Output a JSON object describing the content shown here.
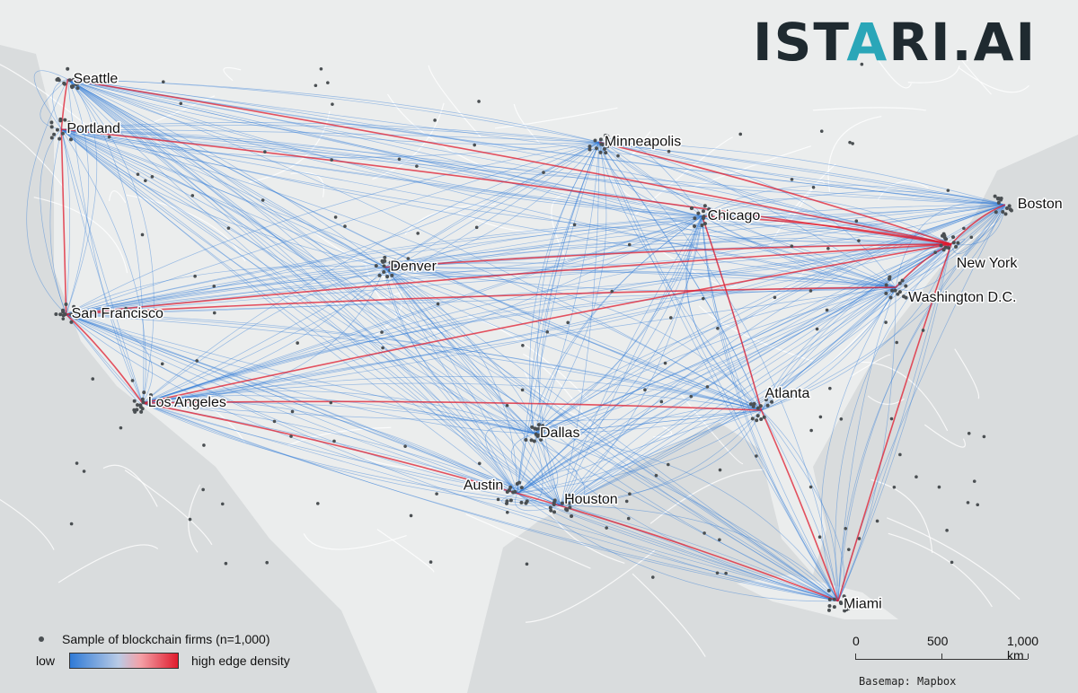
{
  "logo": {
    "left": "IST",
    "accent": "A",
    "right": "RI.AI"
  },
  "cities": [
    {
      "name": "Seattle",
      "lon": -122.33,
      "lat": 47.61
    },
    {
      "name": "Portland",
      "lon": -122.68,
      "lat": 45.52
    },
    {
      "name": "San Francisco",
      "lon": -122.42,
      "lat": 37.77
    },
    {
      "name": "Los Angeles",
      "lon": -118.24,
      "lat": 34.05
    },
    {
      "name": "Denver",
      "lon": -104.99,
      "lat": 39.74
    },
    {
      "name": "Minneapolis",
      "lon": -93.27,
      "lat": 44.98
    },
    {
      "name": "Chicago",
      "lon": -87.63,
      "lat": 41.88
    },
    {
      "name": "Dallas",
      "lon": -96.8,
      "lat": 32.78
    },
    {
      "name": "Austin",
      "lon": -97.74,
      "lat": 30.27
    },
    {
      "name": "Houston",
      "lon": -95.37,
      "lat": 29.76
    },
    {
      "name": "Atlanta",
      "lon": -84.39,
      "lat": 33.75
    },
    {
      "name": "Miami",
      "lon": -80.19,
      "lat": 25.76
    },
    {
      "name": "Washington D.C.",
      "lon": -77.04,
      "lat": 38.9
    },
    {
      "name": "New York",
      "lon": -74.01,
      "lat": 40.71
    },
    {
      "name": "Boston",
      "lon": -71.06,
      "lat": 42.36
    }
  ],
  "legend": {
    "firms_label": "Sample of blockchain firms (n=1,000)",
    "low_label": "low",
    "high_label": "high edge density"
  },
  "scale": {
    "labels": [
      "0",
      "500",
      "1,000 km"
    ]
  },
  "credit": "Basemap: Mapbox",
  "colors": {
    "water": "#d9dcdd",
    "land": "#ebeded",
    "edge_low": "#2f7ad6",
    "edge_high": "#e01b2d",
    "firm_dot": "#4a4f52"
  }
}
